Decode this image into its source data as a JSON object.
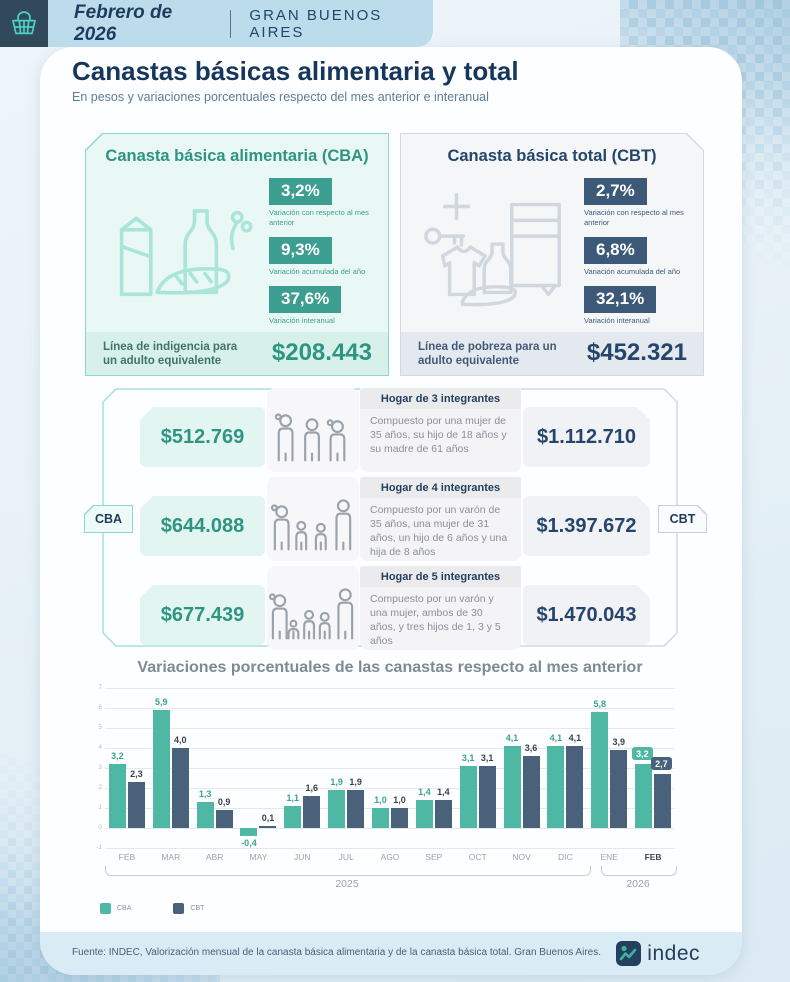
{
  "header": {
    "period": "Febrero de 2026",
    "region": "GRAN BUENOS AIRES"
  },
  "page": {
    "title": "Canastas básicas alimentaria y total",
    "subtitle": "En pesos y variaciones porcentuales respecto del mes anterior e interanual"
  },
  "cba": {
    "title": "Canasta básica alimentaria (CBA)",
    "icon": "groceries-icon",
    "accent": "#3b9e90",
    "stats": [
      {
        "value": "3,2%",
        "label": "Variación con respecto al mes anterior"
      },
      {
        "value": "9,3%",
        "label": "Variación acumulada del año"
      },
      {
        "value": "37,6%",
        "label": "Variación interanual"
      }
    ],
    "line_label": "Línea de indigencia para un adulto equivalente",
    "line_value": "$208.443"
  },
  "cbt": {
    "title": "Canasta básica total (CBT)",
    "icon": "household-goods-icon",
    "accent": "#3c5a78",
    "stats": [
      {
        "value": "2,7%",
        "label": "Variación con respecto al mes anterior"
      },
      {
        "value": "6,8%",
        "label": "Variación acumulada del año"
      },
      {
        "value": "32,1%",
        "label": "Variación interanual"
      }
    ],
    "line_label": "Línea de pobreza para un adulto equivalente",
    "line_value": "$452.321"
  },
  "households": {
    "left_tab": "CBA",
    "right_tab": "CBT",
    "rows": [
      {
        "title": "Hogar de 3 integrantes",
        "desc": "Compuesto por una mujer de 35 años, su hijo de 18 años y su madre de 61 años",
        "cba_value": "$512.769",
        "cbt_value": "$1.112.710"
      },
      {
        "title": "Hogar de 4 integrantes",
        "desc": "Compuesto por un varón de 35 años, una mujer de 31 años, un hijo de 6 años y una hija de 8 años",
        "cba_value": "$644.088",
        "cbt_value": "$1.397.672"
      },
      {
        "title": "Hogar de 5 integrantes",
        "desc": "Compuesto por un varón y una mujer, ambos de 30 años, y tres hijos de 1, 3 y 5 años",
        "cba_value": "$677.439",
        "cbt_value": "$1.470.043"
      }
    ]
  },
  "chart_data": {
    "type": "bar",
    "title": "Variaciones porcentuales de las canastas respecto al mes anterior",
    "categories": [
      "FEB",
      "MAR",
      "ABR",
      "MAY",
      "JUN",
      "JUL",
      "AGO",
      "SEP",
      "OCT",
      "NOV",
      "DIC",
      "ENE",
      "FEB"
    ],
    "year_groups": [
      {
        "label": "2025",
        "months": "FEB-DIC"
      },
      {
        "label": "2026",
        "months": "ENE-FEB"
      }
    ],
    "series": [
      {
        "name": "CBA",
        "color": "#4fb8a5",
        "label_color": "#3ba291",
        "values": [
          3.2,
          5.9,
          1.3,
          -0.4,
          1.1,
          1.9,
          1.0,
          1.4,
          3.1,
          4.1,
          4.1,
          5.8,
          3.2
        ]
      },
      {
        "name": "CBT",
        "color": "#49617a",
        "label_color": "#3b424b",
        "values": [
          2.3,
          4.0,
          0.9,
          0.1,
          1.6,
          1.9,
          1.0,
          1.4,
          3.1,
          3.6,
          4.1,
          3.9,
          2.7
        ]
      }
    ],
    "ylim": [
      -1,
      7
    ],
    "yticks": [
      7,
      6,
      5,
      4,
      3,
      2,
      1,
      0,
      -1
    ],
    "grid": true,
    "legend_position": "bottom-left",
    "highlight_last": true
  },
  "footer": {
    "source": "Fuente: INDEC, Valorización mensual de la canasta básica alimentaria y de la canasta básica total. Gran Buenos Aires.",
    "logo_text": "indec"
  }
}
